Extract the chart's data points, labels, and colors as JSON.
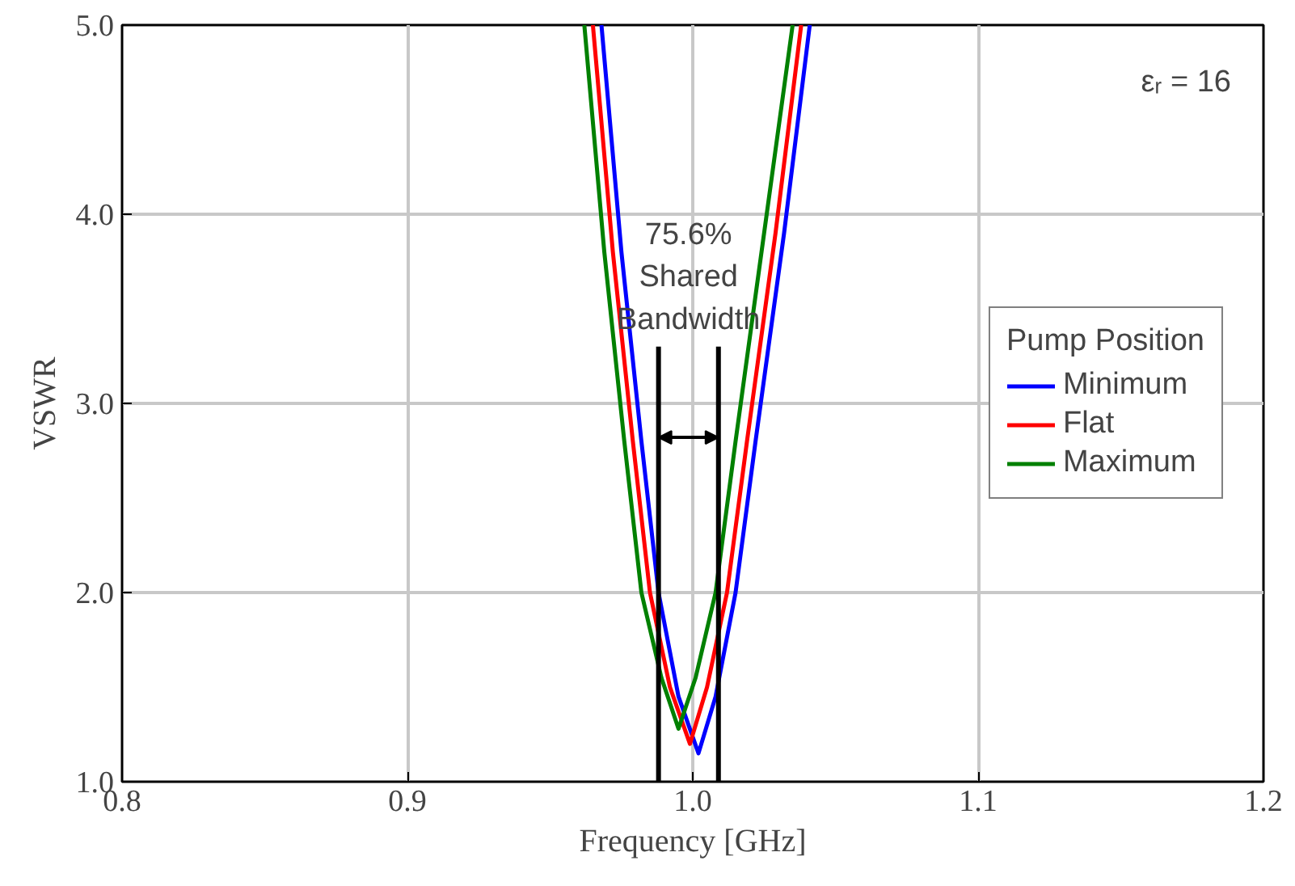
{
  "chart_data": {
    "type": "line",
    "xlabel": "Frequency [GHz]",
    "ylabel": "VSWR",
    "legend_title": "Pump Position",
    "xlim": [
      0.8,
      1.2
    ],
    "ylim": [
      1.0,
      5.0
    ],
    "xticks": [
      0.8,
      0.9,
      {
        "value": 1.0,
        "label": "1.0"
      },
      1.1,
      1.2
    ],
    "yticks": [
      {
        "value": 1.0,
        "label": "1.0"
      },
      {
        "value": 2.0,
        "label": "2.0"
      },
      {
        "value": 3.0,
        "label": "3.0"
      },
      {
        "value": 4.0,
        "label": "4.0"
      },
      {
        "value": 5.0,
        "label": "5.0"
      }
    ],
    "grid": true,
    "legend": "right",
    "marker": "none",
    "line_style": "solid",
    "series": [
      {
        "name": "Minimum",
        "color": "#0000ff",
        "x": [
          0.968,
          0.975,
          0.982,
          0.988,
          0.995,
          1.002,
          1.008,
          1.015,
          1.022,
          1.032,
          1.041
        ],
        "values": [
          5.0,
          3.8,
          2.8,
          2.0,
          1.45,
          1.15,
          1.45,
          2.0,
          2.8,
          3.9,
          5.0
        ]
      },
      {
        "name": "Flat",
        "color": "#ff0000",
        "x": [
          0.965,
          0.972,
          0.979,
          0.985,
          0.992,
          0.999,
          1.005,
          1.012,
          1.019,
          1.029,
          1.038
        ],
        "values": [
          5.0,
          3.8,
          2.8,
          2.0,
          1.5,
          1.2,
          1.5,
          2.0,
          2.8,
          3.9,
          5.0
        ]
      },
      {
        "name": "Maximum",
        "color": "#008000",
        "x": [
          0.962,
          0.969,
          0.976,
          0.982,
          0.989,
          0.995,
          1.001,
          1.008,
          1.015,
          1.025,
          1.035
        ],
        "values": [
          5.0,
          3.8,
          2.8,
          2.0,
          1.55,
          1.28,
          1.55,
          2.0,
          2.8,
          3.9,
          5.0
        ]
      }
    ],
    "ref_lines": [
      {
        "axis": "x",
        "value": 0.988,
        "color": "#000000"
      },
      {
        "axis": "x",
        "value": 1.009,
        "color": "#000000"
      }
    ],
    "annotations": [
      "75.6%\nShared\nBandwidth",
      "εᵣ = 16"
    ]
  }
}
